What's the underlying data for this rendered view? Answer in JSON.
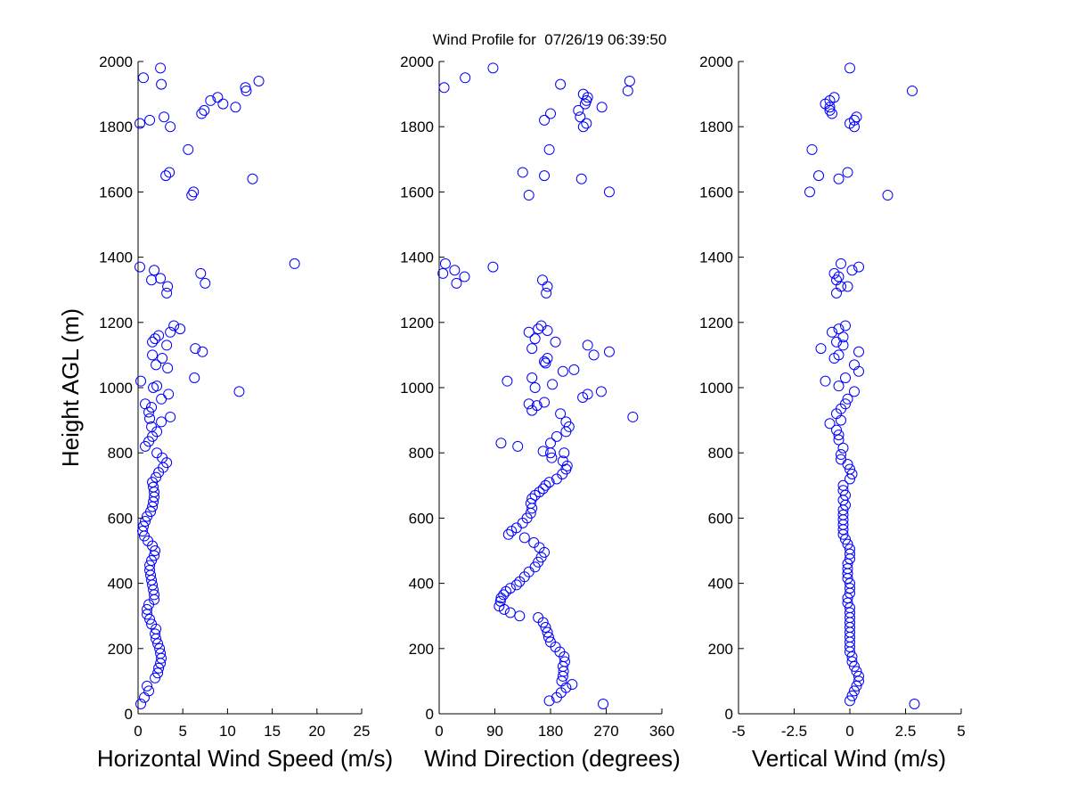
{
  "figure": {
    "title": "Wind Profile for  07/26/19 06:39:50"
  },
  "chart_data": [
    {
      "type": "scatter",
      "xlabel": "Horizontal Wind Speed (m/s)",
      "ylabel": "Height AGL (m)",
      "xlim": [
        0,
        25
      ],
      "ylim": [
        0,
        2000
      ],
      "xticks": [
        "0",
        "5",
        "10",
        "15",
        "20",
        "25"
      ],
      "yticks": [
        "0",
        "200",
        "400",
        "600",
        "800",
        "1000",
        "1200",
        "1400",
        "1600",
        "1800",
        "2000"
      ],
      "grid": false,
      "marker": "open-circle",
      "color": "#0000ff",
      "points": [
        [
          0.3,
          30
        ],
        [
          0.7,
          50
        ],
        [
          1.2,
          70
        ],
        [
          1.0,
          85
        ],
        [
          1.9,
          110
        ],
        [
          2.2,
          125
        ],
        [
          2.3,
          140
        ],
        [
          2.5,
          155
        ],
        [
          2.6,
          170
        ],
        [
          2.5,
          185
        ],
        [
          2.4,
          200
        ],
        [
          2.2,
          215
        ],
        [
          2.0,
          230
        ],
        [
          1.9,
          245
        ],
        [
          2.0,
          260
        ],
        [
          1.5,
          275
        ],
        [
          1.3,
          290
        ],
        [
          1.0,
          305
        ],
        [
          1.0,
          320
        ],
        [
          1.2,
          335
        ],
        [
          1.8,
          350
        ],
        [
          1.8,
          365
        ],
        [
          1.7,
          380
        ],
        [
          1.6,
          395
        ],
        [
          1.5,
          410
        ],
        [
          1.4,
          425
        ],
        [
          1.3,
          440
        ],
        [
          1.3,
          455
        ],
        [
          1.5,
          470
        ],
        [
          1.8,
          485
        ],
        [
          1.9,
          500
        ],
        [
          1.6,
          515
        ],
        [
          1.1,
          530
        ],
        [
          0.7,
          545
        ],
        [
          0.5,
          560
        ],
        [
          0.6,
          575
        ],
        [
          0.8,
          590
        ],
        [
          1.0,
          605
        ],
        [
          1.4,
          620
        ],
        [
          1.6,
          635
        ],
        [
          1.7,
          650
        ],
        [
          1.8,
          665
        ],
        [
          1.8,
          680
        ],
        [
          1.7,
          695
        ],
        [
          1.6,
          710
        ],
        [
          2.0,
          725
        ],
        [
          2.3,
          740
        ],
        [
          2.8,
          755
        ],
        [
          3.2,
          770
        ],
        [
          2.7,
          785
        ],
        [
          2.1,
          800
        ],
        [
          0.8,
          820
        ],
        [
          1.2,
          835
        ],
        [
          1.6,
          850
        ],
        [
          2.1,
          865
        ],
        [
          1.5,
          880
        ],
        [
          2.6,
          895
        ],
        [
          1.3,
          905
        ],
        [
          3.6,
          910
        ],
        [
          1.2,
          925
        ],
        [
          1.5,
          940
        ],
        [
          0.8,
          950
        ],
        [
          2.6,
          965
        ],
        [
          3.4,
          980
        ],
        [
          1.7,
          1000
        ],
        [
          0.3,
          1020
        ],
        [
          2.1,
          1005
        ],
        [
          6.3,
          1030
        ],
        [
          11.3,
          988
        ],
        [
          3.3,
          1060
        ],
        [
          2.0,
          1070
        ],
        [
          2.7,
          1090
        ],
        [
          1.6,
          1100
        ],
        [
          7.2,
          1110
        ],
        [
          6.4,
          1120
        ],
        [
          3.2,
          1130
        ],
        [
          1.6,
          1140
        ],
        [
          2.3,
          1160
        ],
        [
          3.6,
          1170
        ],
        [
          4.0,
          1190
        ],
        [
          4.7,
          1180
        ],
        [
          1.9,
          1150
        ],
        [
          2.5,
          1335
        ],
        [
          1.5,
          1330
        ],
        [
          3.2,
          1290
        ],
        [
          3.3,
          1310
        ],
        [
          1.8,
          1360
        ],
        [
          7.0,
          1350
        ],
        [
          7.5,
          1320
        ],
        [
          0.2,
          1370
        ],
        [
          17.5,
          1380
        ],
        [
          6.0,
          1590
        ],
        [
          6.2,
          1600
        ],
        [
          12.8,
          1640
        ],
        [
          3.1,
          1650
        ],
        [
          3.5,
          1660
        ],
        [
          5.6,
          1730
        ],
        [
          3.6,
          1800
        ],
        [
          0.2,
          1810
        ],
        [
          1.3,
          1820
        ],
        [
          2.9,
          1830
        ],
        [
          7.1,
          1840
        ],
        [
          7.4,
          1850
        ],
        [
          10.9,
          1860
        ],
        [
          9.5,
          1870
        ],
        [
          8.1,
          1880
        ],
        [
          8.9,
          1890
        ],
        [
          12.1,
          1910
        ],
        [
          12.0,
          1920
        ],
        [
          13.5,
          1940
        ],
        [
          2.6,
          1930
        ],
        [
          0.6,
          1950
        ],
        [
          2.5,
          1980
        ]
      ]
    },
    {
      "type": "scatter",
      "xlabel": "Wind Direction (degrees)",
      "ylabel": "",
      "xlim": [
        0,
        360
      ],
      "ylim": [
        0,
        2000
      ],
      "xticks": [
        "0",
        "90",
        "180",
        "270",
        "360"
      ],
      "yticks": [
        "0",
        "200",
        "400",
        "600",
        "800",
        "1000",
        "1200",
        "1400",
        "1600",
        "1800",
        "2000"
      ],
      "grid": false,
      "marker": "open-circle",
      "color": "#0000ff",
      "points": [
        [
          265,
          30
        ],
        [
          178,
          40
        ],
        [
          190,
          50
        ],
        [
          197,
          65
        ],
        [
          215,
          90
        ],
        [
          205,
          80
        ],
        [
          198,
          100
        ],
        [
          200,
          115
        ],
        [
          201,
          130
        ],
        [
          200,
          145
        ],
        [
          203,
          160
        ],
        [
          202,
          175
        ],
        [
          195,
          190
        ],
        [
          188,
          205
        ],
        [
          180,
          220
        ],
        [
          177,
          235
        ],
        [
          175,
          250
        ],
        [
          172,
          265
        ],
        [
          168,
          280
        ],
        [
          160,
          295
        ],
        [
          130,
          300
        ],
        [
          115,
          310
        ],
        [
          105,
          320
        ],
        [
          97,
          330
        ],
        [
          99,
          345
        ],
        [
          100,
          355
        ],
        [
          104,
          365
        ],
        [
          108,
          375
        ],
        [
          115,
          385
        ],
        [
          125,
          395
        ],
        [
          130,
          405
        ],
        [
          138,
          420
        ],
        [
          145,
          435
        ],
        [
          155,
          450
        ],
        [
          160,
          465
        ],
        [
          165,
          480
        ],
        [
          170,
          495
        ],
        [
          162,
          510
        ],
        [
          153,
          525
        ],
        [
          138,
          540
        ],
        [
          112,
          550
        ],
        [
          117,
          560
        ],
        [
          125,
          570
        ],
        [
          135,
          585
        ],
        [
          142,
          600
        ],
        [
          148,
          615
        ],
        [
          150,
          630
        ],
        [
          148,
          645
        ],
        [
          150,
          660
        ],
        [
          155,
          670
        ],
        [
          162,
          680
        ],
        [
          168,
          690
        ],
        [
          172,
          700
        ],
        [
          178,
          710
        ],
        [
          190,
          720
        ],
        [
          199,
          735
        ],
        [
          205,
          750
        ],
        [
          207,
          760
        ],
        [
          200,
          775
        ],
        [
          182,
          785
        ],
        [
          180,
          800
        ],
        [
          168,
          805
        ],
        [
          202,
          800
        ],
        [
          180,
          830
        ],
        [
          190,
          850
        ],
        [
          100,
          830
        ],
        [
          127,
          820
        ],
        [
          205,
          865
        ],
        [
          210,
          880
        ],
        [
          205,
          895
        ],
        [
          196,
          920
        ],
        [
          313,
          910
        ],
        [
          150,
          930
        ],
        [
          158,
          945
        ],
        [
          170,
          955
        ],
        [
          145,
          950
        ],
        [
          232,
          970
        ],
        [
          240,
          980
        ],
        [
          262,
          988
        ],
        [
          155,
          1000
        ],
        [
          183,
          1010
        ],
        [
          150,
          1030
        ],
        [
          110,
          1020
        ],
        [
          200,
          1050
        ],
        [
          218,
          1055
        ],
        [
          172,
          1075
        ],
        [
          175,
          1090
        ],
        [
          170,
          1080
        ],
        [
          250,
          1100
        ],
        [
          275,
          1110
        ],
        [
          150,
          1120
        ],
        [
          188,
          1140
        ],
        [
          155,
          1150
        ],
        [
          240,
          1130
        ],
        [
          145,
          1170
        ],
        [
          160,
          1180
        ],
        [
          175,
          1175
        ],
        [
          165,
          1190
        ],
        [
          6,
          1350
        ],
        [
          10,
          1380
        ],
        [
          25,
          1360
        ],
        [
          28,
          1320
        ],
        [
          41,
          1340
        ],
        [
          87,
          1370
        ],
        [
          173,
          1290
        ],
        [
          167,
          1330
        ],
        [
          175,
          1310
        ],
        [
          145,
          1590
        ],
        [
          135,
          1660
        ],
        [
          170,
          1650
        ],
        [
          230,
          1640
        ],
        [
          178,
          1730
        ],
        [
          275,
          1600
        ],
        [
          233,
          1800
        ],
        [
          238,
          1810
        ],
        [
          170,
          1820
        ],
        [
          180,
          1840
        ],
        [
          225,
          1850
        ],
        [
          263,
          1860
        ],
        [
          236,
          1870
        ],
        [
          238,
          1880
        ],
        [
          240,
          1890
        ],
        [
          233,
          1900
        ],
        [
          305,
          1910
        ],
        [
          8,
          1920
        ],
        [
          196,
          1930
        ],
        [
          308,
          1940
        ],
        [
          42,
          1950
        ],
        [
          87,
          1980
        ],
        [
          228,
          1830
        ]
      ]
    },
    {
      "type": "scatter",
      "xlabel": "Vertical Wind (m/s)",
      "ylabel": "",
      "xlim": [
        -5,
        5
      ],
      "ylim": [
        0,
        2000
      ],
      "xticks": [
        "-5",
        "-2.5",
        "0",
        "2.5",
        "5"
      ],
      "yticks": [
        "0",
        "200",
        "400",
        "600",
        "800",
        "1000",
        "1200",
        "1400",
        "1600",
        "1800",
        "2000"
      ],
      "grid": false,
      "marker": "open-circle",
      "color": "#0000ff",
      "points": [
        [
          2.9,
          30
        ],
        [
          0.0,
          40
        ],
        [
          0.1,
          55
        ],
        [
          0.2,
          70
        ],
        [
          0.3,
          85
        ],
        [
          0.4,
          100
        ],
        [
          0.4,
          115
        ],
        [
          0.3,
          130
        ],
        [
          0.2,
          145
        ],
        [
          0.1,
          160
        ],
        [
          0.1,
          175
        ],
        [
          0.0,
          190
        ],
        [
          0.0,
          205
        ],
        [
          0.0,
          220
        ],
        [
          0.0,
          235
        ],
        [
          0.0,
          250
        ],
        [
          0.0,
          265
        ],
        [
          0.0,
          280
        ],
        [
          0.0,
          295
        ],
        [
          0.0,
          310
        ],
        [
          0.0,
          325
        ],
        [
          -0.1,
          340
        ],
        [
          -0.1,
          355
        ],
        [
          0.0,
          370
        ],
        [
          0.0,
          385
        ],
        [
          0.0,
          400
        ],
        [
          -0.1,
          415
        ],
        [
          -0.1,
          430
        ],
        [
          -0.1,
          445
        ],
        [
          -0.1,
          460
        ],
        [
          0.0,
          475
        ],
        [
          0.0,
          490
        ],
        [
          0.0,
          505
        ],
        [
          -0.1,
          520
        ],
        [
          -0.2,
          535
        ],
        [
          -0.3,
          550
        ],
        [
          -0.3,
          565
        ],
        [
          -0.3,
          580
        ],
        [
          -0.3,
          595
        ],
        [
          -0.3,
          610
        ],
        [
          -0.3,
          625
        ],
        [
          -0.2,
          640
        ],
        [
          -0.3,
          655
        ],
        [
          -0.2,
          670
        ],
        [
          -0.3,
          685
        ],
        [
          -0.3,
          700
        ],
        [
          0.0,
          720
        ],
        [
          0.1,
          735
        ],
        [
          0.0,
          750
        ],
        [
          -0.1,
          765
        ],
        [
          -0.4,
          780
        ],
        [
          -0.4,
          795
        ],
        [
          -0.3,
          815
        ],
        [
          -0.5,
          840
        ],
        [
          -0.5,
          855
        ],
        [
          -0.6,
          870
        ],
        [
          -0.9,
          890
        ],
        [
          -0.4,
          900
        ],
        [
          -0.6,
          920
        ],
        [
          -0.4,
          935
        ],
        [
          -0.2,
          950
        ],
        [
          -0.1,
          965
        ],
        [
          0.2,
          988
        ],
        [
          -0.5,
          1005
        ],
        [
          -1.1,
          1020
        ],
        [
          -0.2,
          1030
        ],
        [
          0.4,
          1050
        ],
        [
          0.2,
          1070
        ],
        [
          -0.7,
          1090
        ],
        [
          -0.5,
          1100
        ],
        [
          0.4,
          1110
        ],
        [
          -1.3,
          1120
        ],
        [
          -0.3,
          1130
        ],
        [
          -0.6,
          1140
        ],
        [
          -0.3,
          1155
        ],
        [
          -0.8,
          1170
        ],
        [
          -0.5,
          1180
        ],
        [
          -0.2,
          1190
        ],
        [
          -0.6,
          1290
        ],
        [
          -0.4,
          1310
        ],
        [
          -0.1,
          1310
        ],
        [
          -0.6,
          1330
        ],
        [
          -0.5,
          1340
        ],
        [
          -0.7,
          1350
        ],
        [
          0.1,
          1360
        ],
        [
          0.4,
          1370
        ],
        [
          -0.4,
          1380
        ],
        [
          1.7,
          1590
        ],
        [
          -1.8,
          1600
        ],
        [
          -0.5,
          1640
        ],
        [
          -1.4,
          1650
        ],
        [
          -0.1,
          1660
        ],
        [
          -1.7,
          1730
        ],
        [
          0.2,
          1800
        ],
        [
          0.0,
          1810
        ],
        [
          0.2,
          1820
        ],
        [
          0.3,
          1830
        ],
        [
          -0.8,
          1840
        ],
        [
          -0.9,
          1850
        ],
        [
          -0.9,
          1860
        ],
        [
          -1.1,
          1870
        ],
        [
          -0.9,
          1880
        ],
        [
          -0.7,
          1890
        ],
        [
          2.8,
          1910
        ],
        [
          0.0,
          1980
        ]
      ]
    }
  ]
}
